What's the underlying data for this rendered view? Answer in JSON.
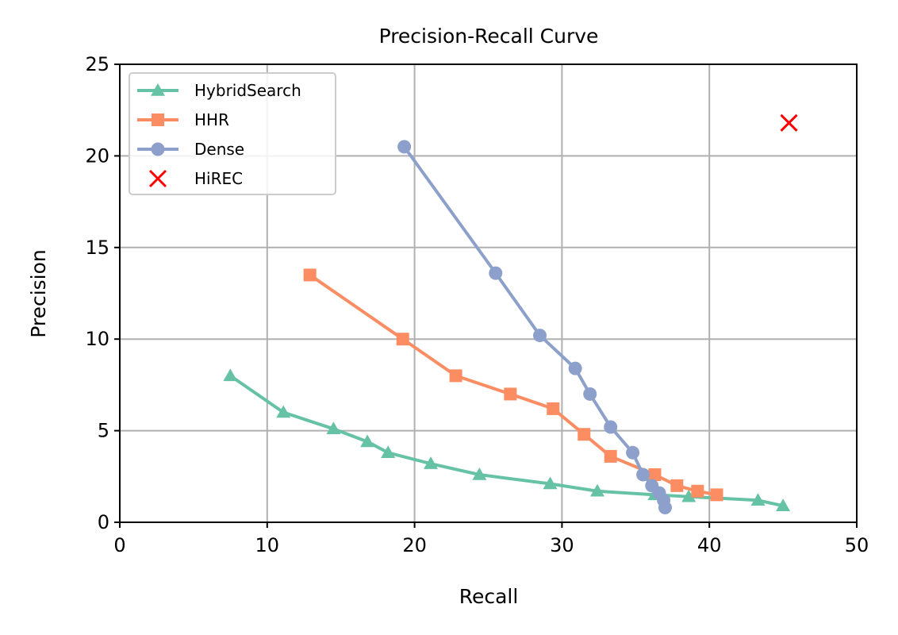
{
  "chart_data": {
    "type": "line",
    "title": "Precision-Recall Curve",
    "xlabel": "Recall",
    "ylabel": "Precision",
    "xlim": [
      0,
      50
    ],
    "ylim": [
      0,
      25
    ],
    "xticks": [
      0,
      10,
      20,
      30,
      40,
      50
    ],
    "yticks": [
      0,
      5,
      10,
      15,
      20,
      25
    ],
    "grid": true,
    "legend_position": "top-left",
    "series": [
      {
        "name": "HybridSearch",
        "marker": "triangle",
        "color": "#66c2a5",
        "x": [
          7.5,
          11.1,
          14.5,
          16.8,
          18.2,
          21.1,
          24.4,
          29.2,
          32.4,
          36.3,
          38.6,
          43.3,
          45.0
        ],
        "y": [
          8.0,
          6.0,
          5.1,
          4.4,
          3.8,
          3.2,
          2.6,
          2.1,
          1.7,
          1.5,
          1.4,
          1.2,
          0.9
        ]
      },
      {
        "name": "HHR",
        "marker": "square",
        "color": "#fc8d62",
        "x": [
          12.9,
          19.2,
          22.8,
          26.5,
          29.4,
          31.5,
          33.3,
          36.3,
          37.8,
          39.2,
          40.5
        ],
        "y": [
          13.5,
          10.0,
          8.0,
          7.0,
          6.2,
          4.8,
          3.6,
          2.6,
          2.0,
          1.7,
          1.5
        ]
      },
      {
        "name": "Dense",
        "marker": "circle",
        "color": "#8da0cb",
        "x": [
          19.3,
          25.5,
          28.5,
          30.9,
          31.9,
          33.3,
          34.8,
          35.5,
          36.1,
          36.6,
          36.9,
          37.0
        ],
        "y": [
          20.5,
          13.6,
          10.2,
          8.4,
          7.0,
          5.2,
          3.8,
          2.6,
          2.0,
          1.6,
          1.2,
          0.8
        ]
      },
      {
        "name": "HiREC",
        "marker": "x",
        "color": "#ff0000",
        "line": false,
        "x": [
          45.4
        ],
        "y": [
          21.8
        ]
      }
    ]
  }
}
